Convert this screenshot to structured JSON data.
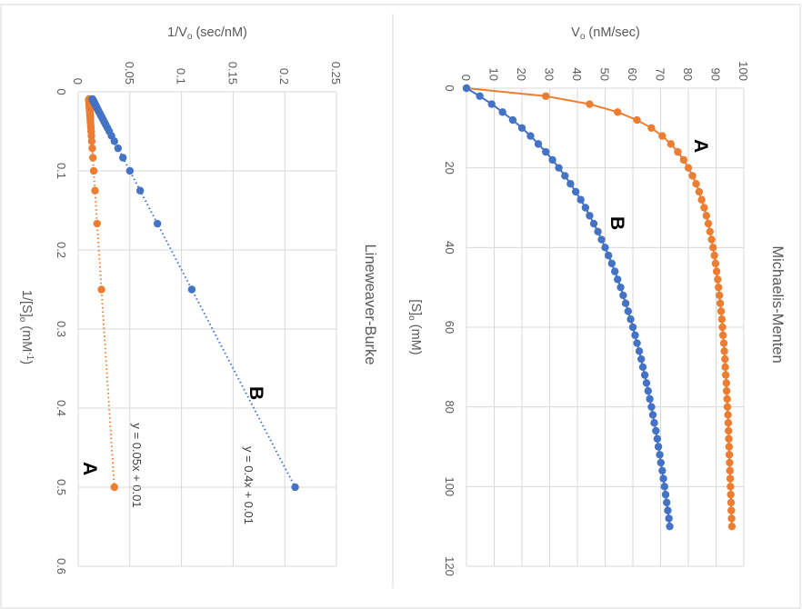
{
  "colors": {
    "series_a": "#ED7D31",
    "series_b": "#4472C4",
    "grid": "#D9D9D9",
    "text": "#595959"
  },
  "chart_data": [
    {
      "type": "line",
      "title": "Michaelis-Menten",
      "xlabel": {
        "main": "[S]",
        "sub": "o",
        "rest": " (mM)"
      },
      "ylabel": {
        "main": "V",
        "sub": "o",
        "rest": " (nM/sec)"
      },
      "xlim": [
        0,
        120
      ],
      "ylim": [
        0,
        100
      ],
      "xticks": [
        "0",
        "20",
        "40",
        "60",
        "80",
        "100",
        "120"
      ],
      "yticks": [
        "0",
        "10",
        "20",
        "30",
        "40",
        "50",
        "60",
        "70",
        "80",
        "90",
        "100"
      ],
      "grid": true,
      "x": [
        0,
        2,
        4,
        6,
        8,
        10,
        12,
        14,
        16,
        18,
        20,
        22,
        24,
        26,
        28,
        30,
        32,
        34,
        36,
        38,
        40,
        42,
        44,
        46,
        48,
        50,
        52,
        54,
        56,
        58,
        60,
        62,
        64,
        66,
        68,
        70,
        72,
        74,
        76,
        78,
        80,
        82,
        84,
        86,
        88,
        90,
        92,
        94,
        96,
        98,
        100,
        102,
        104,
        106,
        108,
        110
      ],
      "series": [
        {
          "name": "A",
          "values": [
            0,
            28.6,
            44.4,
            54.5,
            61.5,
            66.7,
            70.6,
            73.7,
            76.2,
            78.3,
            80.0,
            81.5,
            82.8,
            83.9,
            84.8,
            85.7,
            86.5,
            87.2,
            87.8,
            88.4,
            88.9,
            89.4,
            89.8,
            90.2,
            90.6,
            90.9,
            91.2,
            91.5,
            91.8,
            92.1,
            92.3,
            92.5,
            92.8,
            93.0,
            93.2,
            93.3,
            93.5,
            93.7,
            93.8,
            94.0,
            94.1,
            94.3,
            94.4,
            94.5,
            94.6,
            94.7,
            94.8,
            94.9,
            95.0,
            95.1,
            95.2,
            95.3,
            95.4,
            95.5,
            95.6,
            95.7
          ]
        },
        {
          "name": "B",
          "values": [
            0,
            4.8,
            9.1,
            13.0,
            16.7,
            20.0,
            23.1,
            25.9,
            28.6,
            31.0,
            33.3,
            35.5,
            37.5,
            39.4,
            41.2,
            42.9,
            44.4,
            45.9,
            47.4,
            48.7,
            50.0,
            51.2,
            52.4,
            53.5,
            54.5,
            55.6,
            56.5,
            57.4,
            58.3,
            59.2,
            60.0,
            60.8,
            61.5,
            62.3,
            63.0,
            63.6,
            64.3,
            64.9,
            65.5,
            66.1,
            66.7,
            67.2,
            67.7,
            68.3,
            68.8,
            69.2,
            69.7,
            70.1,
            70.6,
            71.0,
            71.4,
            71.8,
            72.2,
            72.6,
            73.0,
            73.3
          ]
        }
      ]
    },
    {
      "type": "scatter",
      "title": "Lineweaver-Burke",
      "xlabel": {
        "main": "1/[S]",
        "sub": "o",
        "rest": " (mM",
        "sup": "-1",
        "end": ")"
      },
      "ylabel": {
        "main": "1/V",
        "sub": "o",
        "rest": " (sec/nM)"
      },
      "xlim": [
        0,
        0.6
      ],
      "ylim": [
        0,
        0.25
      ],
      "xticks": [
        "0",
        "0.1",
        "0.2",
        "0.3",
        "0.4",
        "0.5",
        "0.6"
      ],
      "yticks": [
        "0",
        "0.05",
        "0.1",
        "0.15",
        "0.2",
        "0.25"
      ],
      "grid": true,
      "x": [
        0.5,
        0.25,
        0.1667,
        0.125,
        0.1,
        0.0833,
        0.0714,
        0.0625,
        0.0556,
        0.05,
        0.0455,
        0.0417,
        0.0385,
        0.0357,
        0.0333,
        0.0313,
        0.0294,
        0.0278,
        0.0263,
        0.025,
        0.0238,
        0.0227,
        0.0217,
        0.0208,
        0.02,
        0.0192,
        0.0185,
        0.0179,
        0.0172,
        0.0167,
        0.0161,
        0.0156,
        0.0152,
        0.0147,
        0.0143,
        0.0139,
        0.0135,
        0.0132,
        0.0128,
        0.0125,
        0.0122,
        0.0119,
        0.0116,
        0.0114,
        0.0111,
        0.0109,
        0.0106,
        0.0104,
        0.0102,
        0.01,
        0.0098,
        0.0096,
        0.0094,
        0.0093,
        0.0091
      ],
      "series": [
        {
          "name": "A",
          "trendline": {
            "slope": 0.05,
            "intercept": 0.01,
            "label": "y = 0.05x + 0.01"
          },
          "values": [
            0.035,
            0.0225,
            0.0183,
            0.0163,
            0.015,
            0.0142,
            0.0136,
            0.0131,
            0.0128,
            0.0125,
            0.0123,
            0.0121,
            0.0119,
            0.0118,
            0.0117,
            0.0116,
            0.0115,
            0.0114,
            0.0113,
            0.0113,
            0.0112,
            0.0111,
            0.0111,
            0.011,
            0.011,
            0.011,
            0.0109,
            0.0109,
            0.0109,
            0.0108,
            0.0108,
            0.0108,
            0.0108,
            0.0107,
            0.0107,
            0.0107,
            0.0107,
            0.0107,
            0.0106,
            0.0106,
            0.0106,
            0.0106,
            0.0106,
            0.0106,
            0.0106,
            0.0105,
            0.0105,
            0.0105,
            0.0105,
            0.0105,
            0.0105,
            0.0105,
            0.0105,
            0.0105,
            0.0105
          ]
        },
        {
          "name": "B",
          "trendline": {
            "slope": 0.4,
            "intercept": 0.01,
            "label": "y = 0.4x + 0.01"
          },
          "values": [
            0.21,
            0.11,
            0.0767,
            0.06,
            0.05,
            0.0433,
            0.0386,
            0.035,
            0.0322,
            0.03,
            0.0282,
            0.0267,
            0.0254,
            0.0243,
            0.0233,
            0.0225,
            0.0218,
            0.0211,
            0.0205,
            0.02,
            0.0195,
            0.0191,
            0.0187,
            0.0183,
            0.018,
            0.0177,
            0.0174,
            0.0172,
            0.0169,
            0.0167,
            0.0164,
            0.0162,
            0.0161,
            0.0159,
            0.0157,
            0.0156,
            0.0154,
            0.0153,
            0.0151,
            0.015,
            0.0149,
            0.0148,
            0.0146,
            0.0146,
            0.0144,
            0.0144,
            0.0142,
            0.0142,
            0.0141,
            0.014,
            0.0139,
            0.0138,
            0.0138,
            0.0137,
            0.0136
          ]
        }
      ]
    }
  ]
}
